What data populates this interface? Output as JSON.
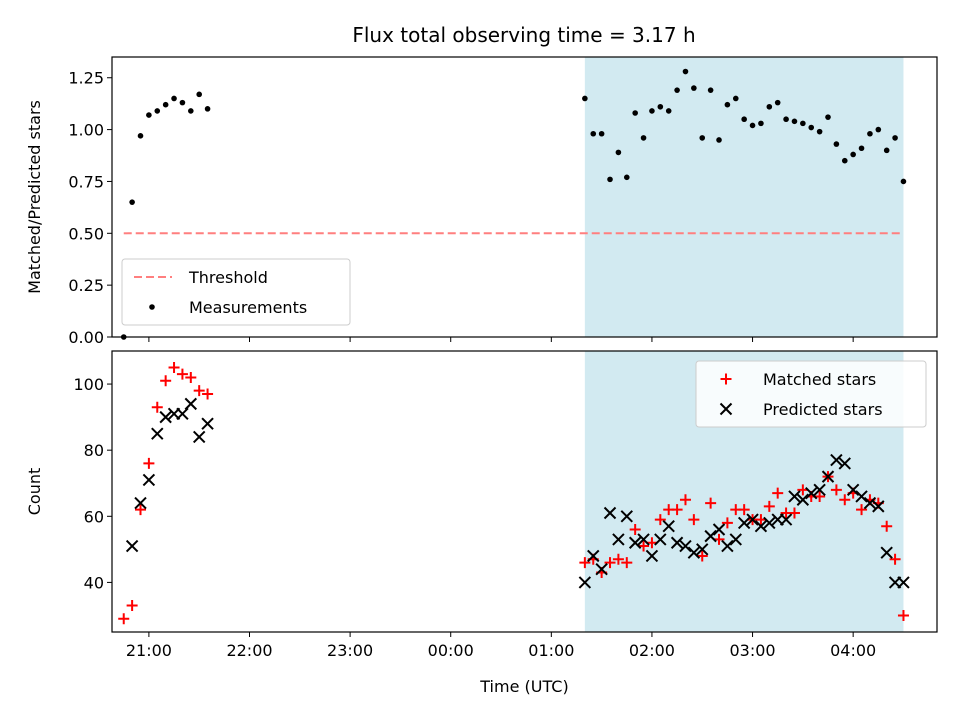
{
  "title": "Flux total observing time = 3.17 h",
  "colors": {
    "threshold": "#ff7f7f",
    "measurement": "#000000",
    "matched": "#ff0000",
    "predicted": "#000000",
    "shade": "#add8e6"
  },
  "chart_data": [
    {
      "type": "scatter",
      "ylabel": "Matched/Predicted stars",
      "xlabel": "",
      "ylim": [
        0,
        1.35
      ],
      "xlim": [
        "20:38",
        "04:50"
      ],
      "yticks": [
        "0.00",
        "0.25",
        "0.50",
        "0.75",
        "1.00",
        "1.25"
      ],
      "shaded_region": [
        "01:20",
        "04:30"
      ],
      "legend": {
        "position": "lower-left",
        "entries": [
          "Threshold",
          "Measurements"
        ]
      },
      "series": [
        {
          "name": "Threshold",
          "style": "dashed-line",
          "x": [
            "20:45",
            "04:30"
          ],
          "y": [
            0.5,
            0.5
          ]
        },
        {
          "name": "Measurements",
          "style": "dot",
          "x": [
            "20:45",
            "20:50",
            "20:55",
            "21:00",
            "21:05",
            "21:10",
            "21:15",
            "21:20",
            "21:25",
            "21:30",
            "21:35",
            "01:20",
            "01:25",
            "01:30",
            "01:35",
            "01:40",
            "01:45",
            "01:50",
            "01:55",
            "02:00",
            "02:05",
            "02:10",
            "02:15",
            "02:20",
            "02:25",
            "02:30",
            "02:35",
            "02:40",
            "02:45",
            "02:50",
            "02:55",
            "03:00",
            "03:05",
            "03:10",
            "03:15",
            "03:20",
            "03:25",
            "03:30",
            "03:35",
            "03:40",
            "03:45",
            "03:50",
            "03:55",
            "04:00",
            "04:05",
            "04:10",
            "04:15",
            "04:20",
            "04:25",
            "04:30"
          ],
          "y": [
            0.0,
            0.65,
            0.97,
            1.07,
            1.09,
            1.12,
            1.15,
            1.13,
            1.09,
            1.17,
            1.1,
            1.15,
            0.98,
            0.98,
            0.76,
            0.89,
            0.77,
            1.08,
            0.96,
            1.09,
            1.11,
            1.09,
            1.19,
            1.28,
            1.2,
            0.96,
            1.19,
            0.95,
            1.12,
            1.15,
            1.05,
            1.02,
            1.03,
            1.11,
            1.13,
            1.05,
            1.04,
            1.03,
            1.01,
            0.99,
            1.06,
            0.93,
            0.85,
            0.88,
            0.91,
            0.98,
            1.0,
            0.9,
            0.96,
            0.75
          ]
        }
      ]
    },
    {
      "type": "scatter",
      "ylabel": "Count",
      "xlabel": "Time (UTC)",
      "ylim": [
        25,
        110
      ],
      "xlim": [
        "20:38",
        "04:50"
      ],
      "yticks": [
        "40",
        "60",
        "80",
        "100"
      ],
      "xticks": [
        "21:00",
        "22:00",
        "23:00",
        "00:00",
        "01:00",
        "02:00",
        "03:00",
        "04:00"
      ],
      "shaded_region": [
        "01:20",
        "04:30"
      ],
      "legend": {
        "position": "upper-right",
        "entries": [
          "Matched stars",
          "Predicted stars"
        ]
      },
      "series": [
        {
          "name": "Matched stars",
          "style": "plus",
          "x": [
            "20:45",
            "20:50",
            "20:55",
            "21:00",
            "21:05",
            "21:10",
            "21:15",
            "21:20",
            "21:25",
            "21:30",
            "21:35",
            "01:20",
            "01:25",
            "01:30",
            "01:35",
            "01:40",
            "01:45",
            "01:50",
            "01:55",
            "02:00",
            "02:05",
            "02:10",
            "02:15",
            "02:20",
            "02:25",
            "02:30",
            "02:35",
            "02:40",
            "02:45",
            "02:50",
            "02:55",
            "03:00",
            "03:05",
            "03:10",
            "03:15",
            "03:20",
            "03:25",
            "03:30",
            "03:35",
            "03:40",
            "03:45",
            "03:50",
            "03:55",
            "04:00",
            "04:05",
            "04:10",
            "04:15",
            "04:20",
            "04:25",
            "04:30"
          ],
          "y": [
            29,
            33,
            62,
            76,
            93,
            101,
            105,
            103,
            102,
            98,
            97,
            46,
            47,
            43,
            46,
            47,
            46,
            56,
            51,
            52,
            59,
            62,
            62,
            65,
            59,
            48,
            64,
            53,
            58,
            62,
            62,
            59,
            59,
            63,
            67,
            61,
            61,
            68,
            66,
            66,
            72,
            68,
            65,
            67,
            62,
            65,
            64,
            57,
            47,
            30
          ]
        },
        {
          "name": "Predicted stars",
          "style": "x",
          "x": [
            "20:50",
            "20:55",
            "21:00",
            "21:05",
            "21:10",
            "21:15",
            "21:20",
            "21:25",
            "21:30",
            "21:35",
            "01:20",
            "01:25",
            "01:30",
            "01:35",
            "01:40",
            "01:45",
            "01:50",
            "01:55",
            "02:00",
            "02:05",
            "02:10",
            "02:15",
            "02:20",
            "02:25",
            "02:30",
            "02:35",
            "02:40",
            "02:45",
            "02:50",
            "02:55",
            "03:00",
            "03:05",
            "03:10",
            "03:15",
            "03:20",
            "03:25",
            "03:30",
            "03:35",
            "03:40",
            "03:45",
            "03:50",
            "03:55",
            "04:00",
            "04:05",
            "04:10",
            "04:15",
            "04:20",
            "04:25",
            "04:30"
          ],
          "y": [
            51,
            64,
            71,
            85,
            90,
            91,
            91,
            94,
            84,
            88,
            40,
            48,
            44,
            61,
            53,
            60,
            52,
            53,
            48,
            53,
            57,
            52,
            51,
            49,
            50,
            54,
            56,
            51,
            53,
            58,
            59,
            57,
            58,
            59,
            59,
            66,
            65,
            67,
            68,
            72,
            77,
            76,
            68,
            66,
            64,
            63,
            49,
            40,
            40
          ]
        }
      ]
    }
  ]
}
